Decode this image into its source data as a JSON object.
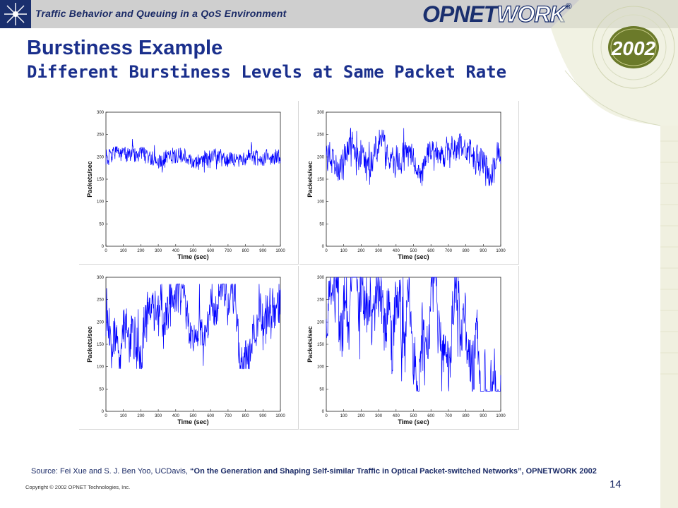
{
  "header": {
    "subtitle": "Traffic Behavior and Queuing in a QoS Environment",
    "brand_dark": "OPNET",
    "brand_light": "WORK",
    "brand_mark": "®",
    "badge": "2002"
  },
  "title": {
    "main": "Burstiness Example",
    "sub": "Different Burstiness Levels at Same Packet Rate"
  },
  "chart_data": [
    {
      "type": "line",
      "xlabel": "Time (sec)",
      "ylabel": "Packets/sec",
      "xlim": [
        0,
        1000
      ],
      "ylim": [
        0,
        300
      ],
      "xticks": [
        "0",
        "100",
        "200",
        "300",
        "400",
        "500",
        "600",
        "700",
        "800",
        "900",
        "1000"
      ],
      "yticks": [
        "0",
        "50",
        "100",
        "150",
        "200",
        "250",
        "300"
      ],
      "series": [
        {
          "color": "#0000ff",
          "mean": 200,
          "range": [
            165,
            240
          ]
        }
      ]
    },
    {
      "type": "line",
      "xlabel": "Time (sec)",
      "ylabel": "Packets/sec",
      "xlim": [
        0,
        1000
      ],
      "ylim": [
        0,
        300
      ],
      "xticks": [
        "0",
        "100",
        "200",
        "300",
        "400",
        "500",
        "600",
        "700",
        "800",
        "900",
        "1000"
      ],
      "yticks": [
        "0",
        "50",
        "100",
        "150",
        "200",
        "250",
        "300"
      ],
      "series": [
        {
          "color": "#0000ff",
          "mean": 200,
          "range": [
            135,
            265
          ]
        }
      ]
    },
    {
      "type": "line",
      "xlabel": "Time (sec)",
      "ylabel": "Packets/sec",
      "xlim": [
        0,
        1000
      ],
      "ylim": [
        0,
        300
      ],
      "xticks": [
        "0",
        "100",
        "200",
        "300",
        "400",
        "500",
        "600",
        "700",
        "800",
        "900",
        "1000"
      ],
      "yticks": [
        "0",
        "50",
        "100",
        "150",
        "200",
        "250",
        "300"
      ],
      "series": [
        {
          "color": "#0000ff",
          "mean": 200,
          "range": [
            95,
            285
          ]
        }
      ]
    },
    {
      "type": "line",
      "xlabel": "Time (sec)",
      "ylabel": "Packets/sec",
      "xlim": [
        0,
        1000
      ],
      "ylim": [
        0,
        300
      ],
      "xticks": [
        "0",
        "100",
        "200",
        "300",
        "400",
        "500",
        "600",
        "700",
        "800",
        "900",
        "1000"
      ],
      "yticks": [
        "0",
        "50",
        "100",
        "150",
        "200",
        "250",
        "300"
      ],
      "series": [
        {
          "color": "#0000ff",
          "mean": 180,
          "range": [
            45,
            300
          ]
        }
      ]
    }
  ],
  "footer": {
    "source_prefix": "Source:  Fei Xue and S. J. Ben Yoo, UCDavis, ",
    "source_paper": "“On the Generation and Shaping Self-similar Traffic in Optical Packet-switched Networks”, OPNETWORK 2002",
    "copyright": "Copyright © 2002 OPNET Technologies, Inc.",
    "page": "14"
  }
}
